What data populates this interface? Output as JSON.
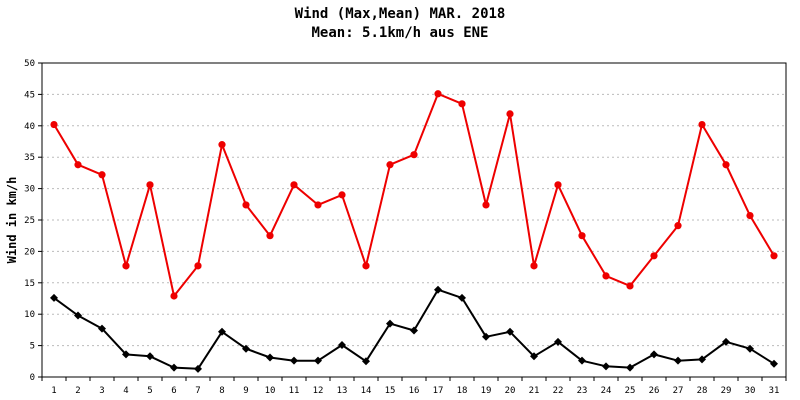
{
  "chart_data": {
    "type": "line",
    "title": "Wind (Max,Mean) MAR. 2018",
    "subtitle": "Mean: 5.1km/h aus ENE",
    "xlabel": "",
    "ylabel": "Wind in km/h",
    "ylim": [
      0,
      50
    ],
    "yticks": [
      0,
      5,
      10,
      15,
      20,
      25,
      30,
      35,
      40,
      45,
      50
    ],
    "grid": true,
    "categories": [
      "1",
      "2",
      "3",
      "4",
      "5",
      "6",
      "7",
      "8",
      "9",
      "10",
      "11",
      "12",
      "13",
      "14",
      "15",
      "16",
      "17",
      "18",
      "19",
      "20",
      "21",
      "22",
      "23",
      "24",
      "25",
      "26",
      "27",
      "28",
      "29",
      "30",
      "31"
    ],
    "series": [
      {
        "color": "#ee0000",
        "marker": "circle",
        "values": [
          40.2,
          33.8,
          32.2,
          17.7,
          30.6,
          12.9,
          17.7,
          37.0,
          27.4,
          22.5,
          30.6,
          27.4,
          29.0,
          17.7,
          33.8,
          35.4,
          45.1,
          43.5,
          27.4,
          41.9,
          17.7,
          30.6,
          22.5,
          16.1,
          14.5,
          19.3,
          24.1,
          40.2,
          33.8,
          25.7,
          19.3
        ]
      },
      {
        "color": "#000000",
        "marker": "diamond",
        "values": [
          12.6,
          9.8,
          7.7,
          3.6,
          3.3,
          1.5,
          1.3,
          7.2,
          4.5,
          3.1,
          2.6,
          2.6,
          5.1,
          2.5,
          8.5,
          7.4,
          13.9,
          12.6,
          6.4,
          7.2,
          3.3,
          5.6,
          2.6,
          1.7,
          1.5,
          3.6,
          2.6,
          2.8,
          5.6,
          4.5,
          2.1
        ]
      }
    ]
  }
}
